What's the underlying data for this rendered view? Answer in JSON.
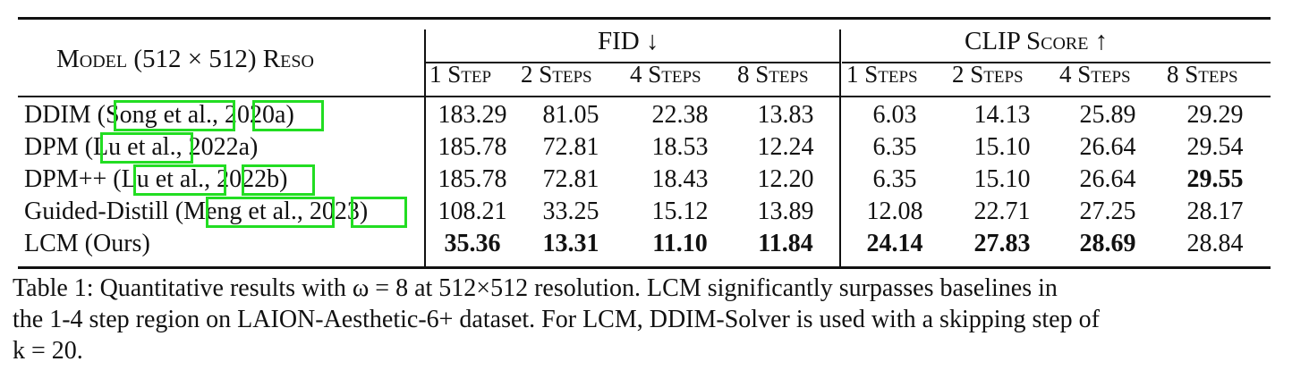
{
  "table": {
    "model_header": "Model (512 × 512) Reso",
    "fid_header": "FID ↓",
    "clip_header": "CLIP Score ↑",
    "fid_steps": [
      "1 Step",
      "2 Steps",
      "4 Steps",
      "8 Steps"
    ],
    "clip_steps": [
      "1 Steps",
      "2 Steps",
      "4 Steps",
      "8 Steps"
    ],
    "rows": [
      {
        "name": "DDIM",
        "cite_author": "Song et al",
        "cite_year": "2020a",
        "fid": [
          "183.29",
          "81.05",
          "22.38",
          "13.83"
        ],
        "clip": [
          "6.03",
          "14.13",
          "25.89",
          "29.29"
        ]
      },
      {
        "name": "DPM",
        "cite_author": "Lu et al",
        "cite_year": "2022a",
        "fid": [
          "185.78",
          "72.81",
          "18.53",
          "12.24"
        ],
        "clip": [
          "6.35",
          "15.10",
          "26.64",
          "29.54"
        ]
      },
      {
        "name": "DPM++",
        "cite_author": "Lu et al",
        "cite_year": "2022b",
        "fid": [
          "185.78",
          "72.81",
          "18.43",
          "12.20"
        ],
        "clip": [
          "6.35",
          "15.10",
          "26.64",
          "29.55"
        ]
      },
      {
        "name": "Guided-Distill",
        "cite_author": "Meng et al",
        "cite_year": "2023",
        "fid": [
          "108.21",
          "33.25",
          "15.12",
          "13.89"
        ],
        "clip": [
          "12.08",
          "22.71",
          "27.25",
          "28.17"
        ]
      },
      {
        "name": "LCM (Ours)",
        "fid": [
          "35.36",
          "13.31",
          "11.10",
          "11.84"
        ],
        "clip": [
          "24.14",
          "27.83",
          "28.69",
          "28.84"
        ]
      }
    ]
  },
  "caption": {
    "line1": "Table 1: Quantitative results with ω = 8 at 512×512 resolution. LCM significantly surpasses baselines in",
    "line2": "the 1-4 step region on LAION-Aesthetic-6+ dataset. For LCM, DDIM-Solver is used with a skipping step of",
    "line3": "k = 20."
  }
}
